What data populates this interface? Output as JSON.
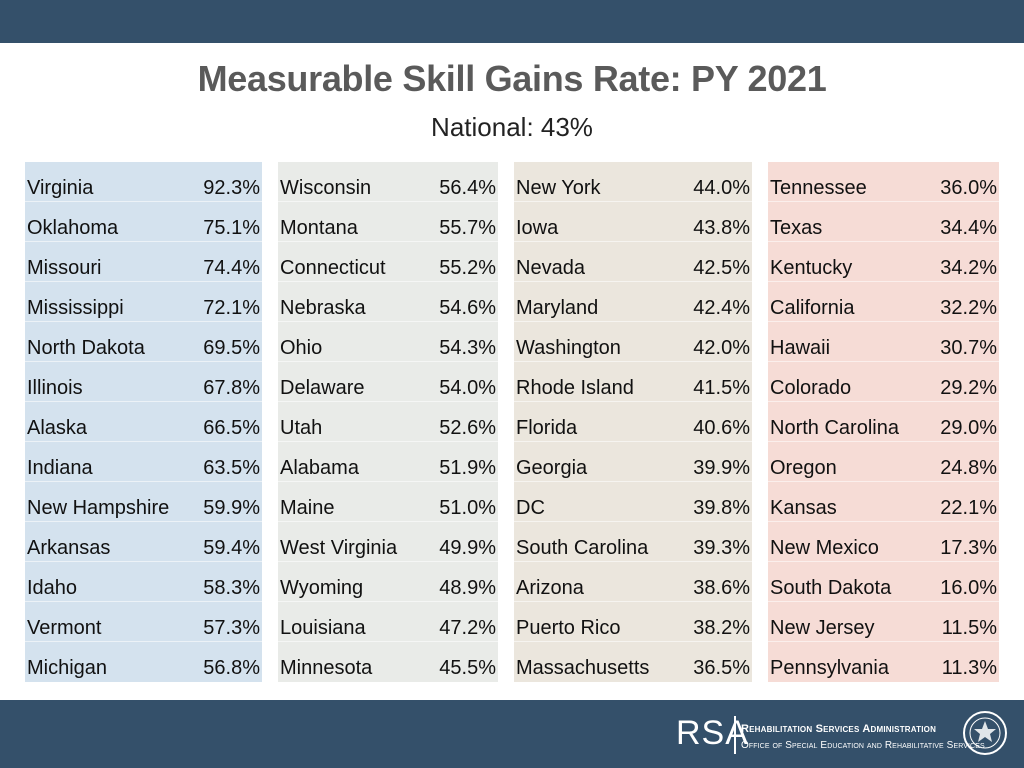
{
  "title": "Measurable Skill Gains Rate: PY 2021",
  "subtitle": "National: 43%",
  "columns": [
    {
      "rows": [
        {
          "state": "Virginia",
          "rate": "92.3%"
        },
        {
          "state": "Oklahoma",
          "rate": "75.1%"
        },
        {
          "state": "Missouri",
          "rate": "74.4%"
        },
        {
          "state": "Mississippi",
          "rate": "72.1%"
        },
        {
          "state": "North Dakota",
          "rate": "69.5%"
        },
        {
          "state": "Illinois",
          "rate": "67.8%"
        },
        {
          "state": "Alaska",
          "rate": "66.5%"
        },
        {
          "state": "Indiana",
          "rate": "63.5%"
        },
        {
          "state": "New Hampshire",
          "rate": "59.9%"
        },
        {
          "state": "Arkansas",
          "rate": "59.4%"
        },
        {
          "state": "Idaho",
          "rate": "58.3%"
        },
        {
          "state": "Vermont",
          "rate": "57.3%"
        },
        {
          "state": "Michigan",
          "rate": "56.8%"
        }
      ]
    },
    {
      "rows": [
        {
          "state": "Wisconsin",
          "rate": "56.4%"
        },
        {
          "state": "Montana",
          "rate": "55.7%"
        },
        {
          "state": "Connecticut",
          "rate": "55.2%"
        },
        {
          "state": "Nebraska",
          "rate": "54.6%"
        },
        {
          "state": "Ohio",
          "rate": "54.3%"
        },
        {
          "state": "Delaware",
          "rate": "54.0%"
        },
        {
          "state": "Utah",
          "rate": "52.6%"
        },
        {
          "state": "Alabama",
          "rate": "51.9%"
        },
        {
          "state": "Maine",
          "rate": "51.0%"
        },
        {
          "state": "West Virginia",
          "rate": "49.9%"
        },
        {
          "state": "Wyoming",
          "rate": "48.9%"
        },
        {
          "state": "Louisiana",
          "rate": "47.2%"
        },
        {
          "state": "Minnesota",
          "rate": "45.5%"
        }
      ]
    },
    {
      "rows": [
        {
          "state": "New York",
          "rate": "44.0%"
        },
        {
          "state": "Iowa",
          "rate": "43.8%"
        },
        {
          "state": "Nevada",
          "rate": "42.5%"
        },
        {
          "state": "Maryland",
          "rate": "42.4%"
        },
        {
          "state": "Washington",
          "rate": "42.0%"
        },
        {
          "state": "Rhode Island",
          "rate": "41.5%"
        },
        {
          "state": "Florida",
          "rate": "40.6%"
        },
        {
          "state": "Georgia",
          "rate": "39.9%"
        },
        {
          "state": "DC",
          "rate": "39.8%"
        },
        {
          "state": "South Carolina",
          "rate": "39.3%"
        },
        {
          "state": "Arizona",
          "rate": "38.6%"
        },
        {
          "state": "Puerto Rico",
          "rate": "38.2%"
        },
        {
          "state": "Massachusetts",
          "rate": "36.5%"
        }
      ]
    },
    {
      "rows": [
        {
          "state": "Tennessee",
          "rate": "36.0%"
        },
        {
          "state": "Texas",
          "rate": "34.4%"
        },
        {
          "state": "Kentucky",
          "rate": "34.2%"
        },
        {
          "state": "California",
          "rate": "32.2%"
        },
        {
          "state": "Hawaii",
          "rate": "30.7%"
        },
        {
          "state": "Colorado",
          "rate": "29.2%"
        },
        {
          "state": "North Carolina",
          "rate": "29.0%"
        },
        {
          "state": "Oregon",
          "rate": "24.8%"
        },
        {
          "state": "Kansas",
          "rate": "22.1%"
        },
        {
          "state": "New Mexico",
          "rate": "17.3%"
        },
        {
          "state": "South Dakota",
          "rate": "16.0%"
        },
        {
          "state": "New Jersey",
          "rate": "11.5%"
        },
        {
          "state": "Pennsylvania",
          "rate": "11.3%"
        }
      ]
    }
  ],
  "footer": {
    "logo": "RSA",
    "agency": "Rehabilitation Services Administration",
    "office": "Office of Special Education and Rehabilitative Services",
    "seal_icon": "department-seal-icon"
  },
  "colors": {
    "bar": "#34506a",
    "col1": "#d4e2ee",
    "col2": "#e9ebe8",
    "col3": "#ebe6dd",
    "col4": "#f6dcd6"
  }
}
